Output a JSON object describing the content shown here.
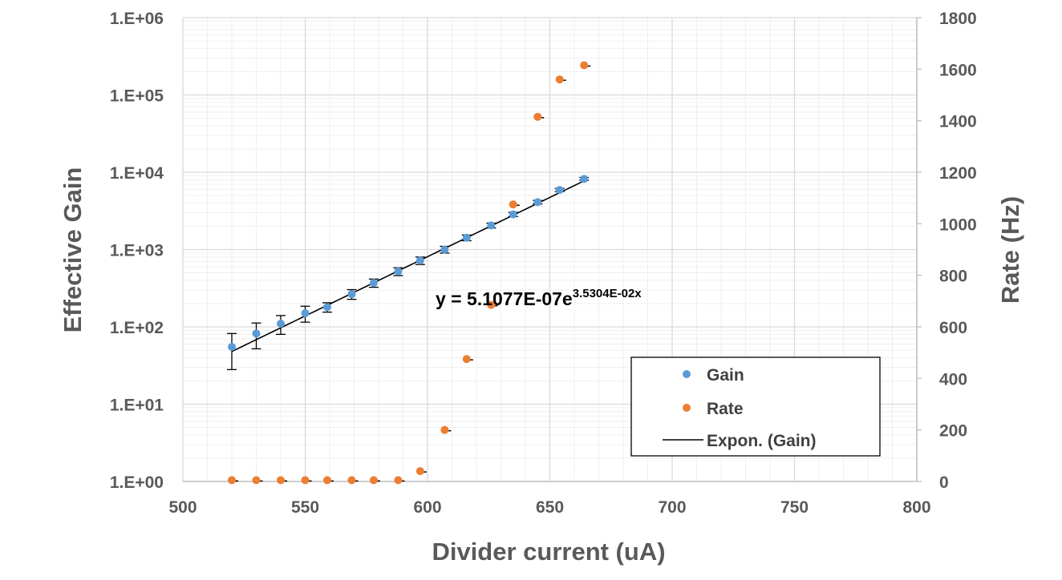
{
  "chart_data": {
    "type": "scatter",
    "xlabel": "Divider current (uA)",
    "ylabel": "Effective Gain",
    "y2label": "Rate (Hz)",
    "xlim": [
      500,
      800
    ],
    "xticks": [
      "500",
      "550",
      "600",
      "650",
      "700",
      "750",
      "800"
    ],
    "ylim": [
      1,
      1000000
    ],
    "yscale": "log",
    "yticks": [
      "1.E+00",
      "1.E+01",
      "1.E+02",
      "1.E+03",
      "1.E+04",
      "1.E+05",
      "1.E+06"
    ],
    "y2lim": [
      0,
      1800
    ],
    "y2ticks": [
      "0",
      "200",
      "400",
      "600",
      "800",
      "1000",
      "1200",
      "1400",
      "1600",
      "1800"
    ],
    "grid": true,
    "legend_position": "bottom-right",
    "series": [
      {
        "name": "Gain",
        "axis": "left",
        "color": "#5B9BD5",
        "x": [
          520,
          530,
          540,
          550,
          559,
          569,
          578,
          588,
          597,
          607,
          616,
          626,
          635,
          645,
          654,
          664
        ],
        "y": [
          55,
          82,
          110,
          150,
          180,
          265,
          370,
          520,
          720,
          1000,
          1420,
          2050,
          2850,
          4100,
          5900,
          8200
        ],
        "yerr": [
          27,
          30,
          30,
          35,
          25,
          38,
          45,
          60,
          80,
          100,
          120,
          150,
          180,
          220,
          280,
          350
        ]
      },
      {
        "name": "Rate",
        "axis": "right",
        "color": "#ED7D31",
        "x": [
          520,
          530,
          540,
          550,
          559,
          569,
          578,
          588,
          597,
          607,
          616,
          626,
          635,
          645,
          654,
          664
        ],
        "y": [
          5,
          5,
          5,
          5,
          5,
          5,
          5,
          5,
          40,
          200,
          475,
          685,
          1075,
          1415,
          1560,
          1615
        ]
      },
      {
        "name": "Expon.  (Gain)",
        "type": "trendline",
        "color": "#000000",
        "equation": "y = 5.1077E-07e",
        "equation_exponent": "3.5304E-02x",
        "coefficient": 5.1077e-07,
        "rate": 0.035304,
        "x_range": [
          520,
          664
        ]
      }
    ]
  }
}
